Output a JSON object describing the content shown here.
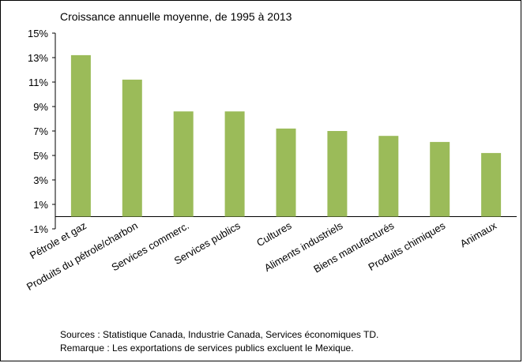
{
  "chart_data": {
    "type": "bar",
    "title": "Croissance annuelle moyenne, de 1995 à 2013",
    "categories": [
      "Pétrole et gaz",
      "Produits du pétrole/charbon",
      "Services commerc.",
      "Services publics",
      "Cultures",
      "Aliments industriels",
      "Biens manufacturés",
      "Produits chimiques",
      "Animaux"
    ],
    "values": [
      13.2,
      11.2,
      8.6,
      8.6,
      7.2,
      7.0,
      6.6,
      6.1,
      5.2
    ],
    "yticks": [
      "15%",
      "13%",
      "11%",
      "9%",
      "7%",
      "5%",
      "3%",
      "1%",
      "-1%"
    ],
    "ylim": [
      -1,
      15
    ],
    "bar_color": "#9BBB59",
    "grid": false,
    "legend": "none"
  },
  "notes": {
    "sources": "Sources : Statistique Canada, Industrie Canada, Services économiques TD.",
    "remark": "Remarque : Les exportations de services publics excluent le Mexique."
  }
}
